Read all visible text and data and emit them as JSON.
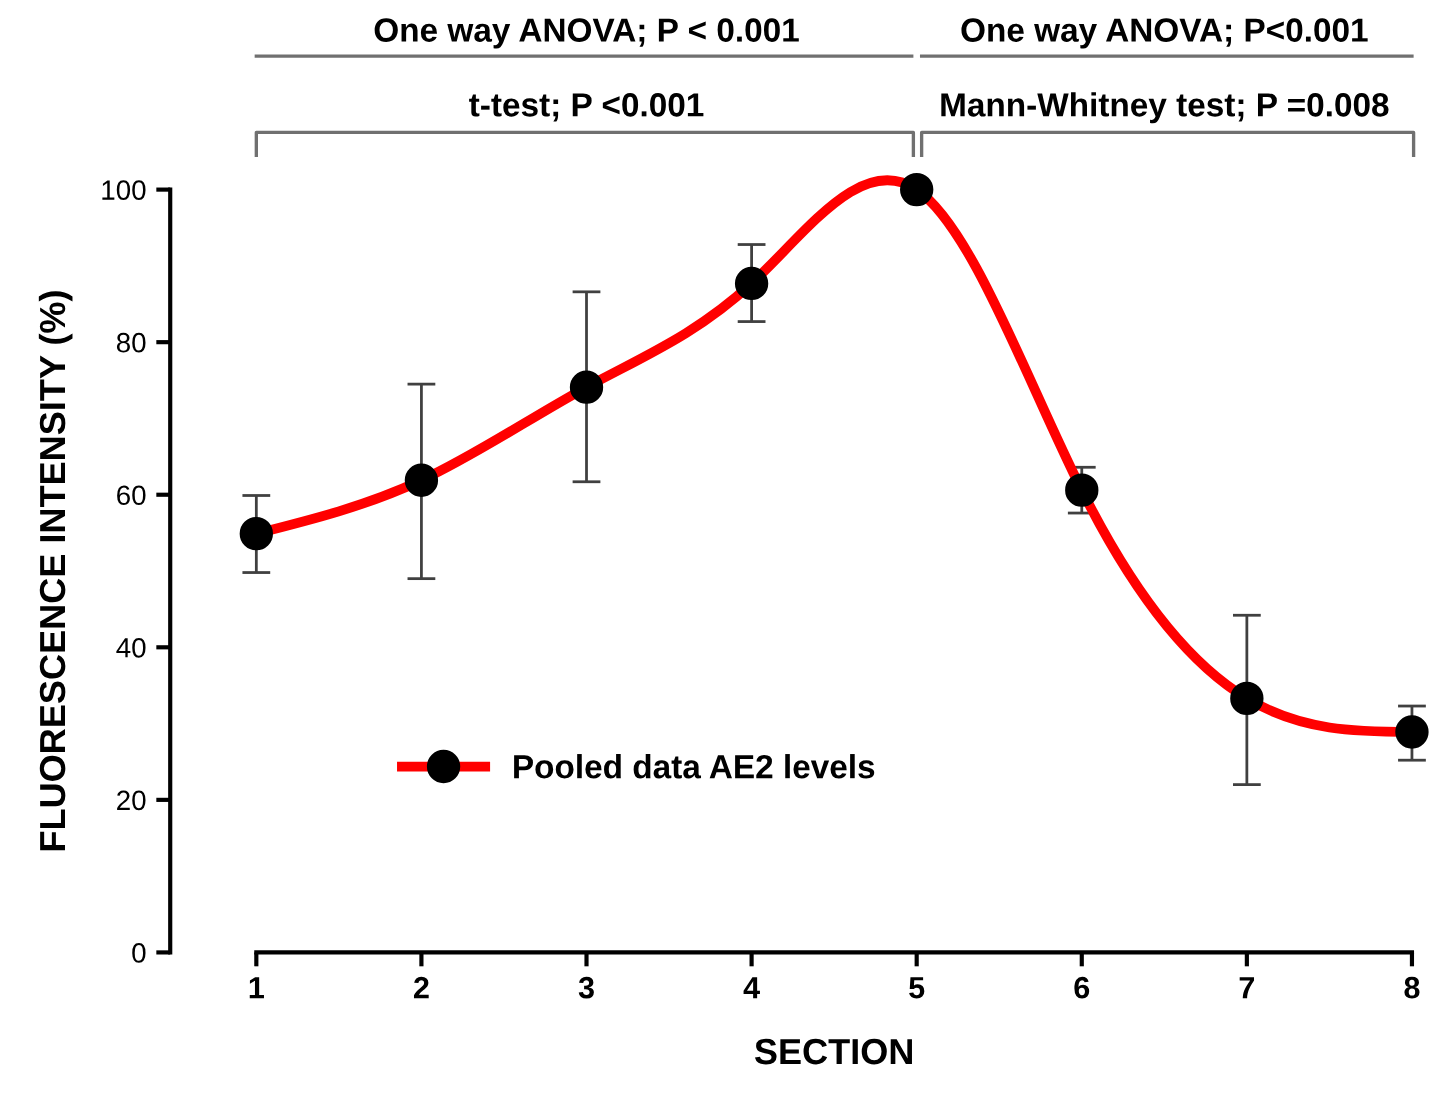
{
  "chart_data": {
    "type": "line",
    "xlabel": "SECTION",
    "ylabel": "FLUORESCENCE INTENSITY (%)",
    "x": [
      1,
      2,
      3,
      4,
      5,
      6,
      7,
      8
    ],
    "series": [
      {
        "name": "Pooled data AE2 levels",
        "color": "#ff0000",
        "values": [
          54.9,
          61.9,
          74.1,
          87.7,
          100,
          60.6,
          33.3,
          28.9
        ],
        "errors": [
          [
            49.8,
            59.9
          ],
          [
            49,
            74.5
          ],
          [
            61.7,
            86.6
          ],
          [
            82.7,
            92.8
          ],
          null,
          [
            57.6,
            63.6
          ],
          [
            22,
            44.2
          ],
          [
            25.2,
            32.3
          ]
        ]
      }
    ],
    "xlim": [
      1,
      8
    ],
    "xticks": [
      1,
      2,
      3,
      4,
      5,
      6,
      7,
      8
    ],
    "ylim": [
      0,
      100
    ],
    "yticks": [
      0,
      20,
      40,
      60,
      80,
      100
    ],
    "marker": "circle",
    "line_style": "solid",
    "legend": "lower left",
    "grid": false,
    "annotations": [
      "One way ANOVA; P < 0.001",
      "One way ANOVA; P<0.001",
      "t-test; P <0.001",
      "Mann-Whitney test; P =0.008"
    ]
  }
}
